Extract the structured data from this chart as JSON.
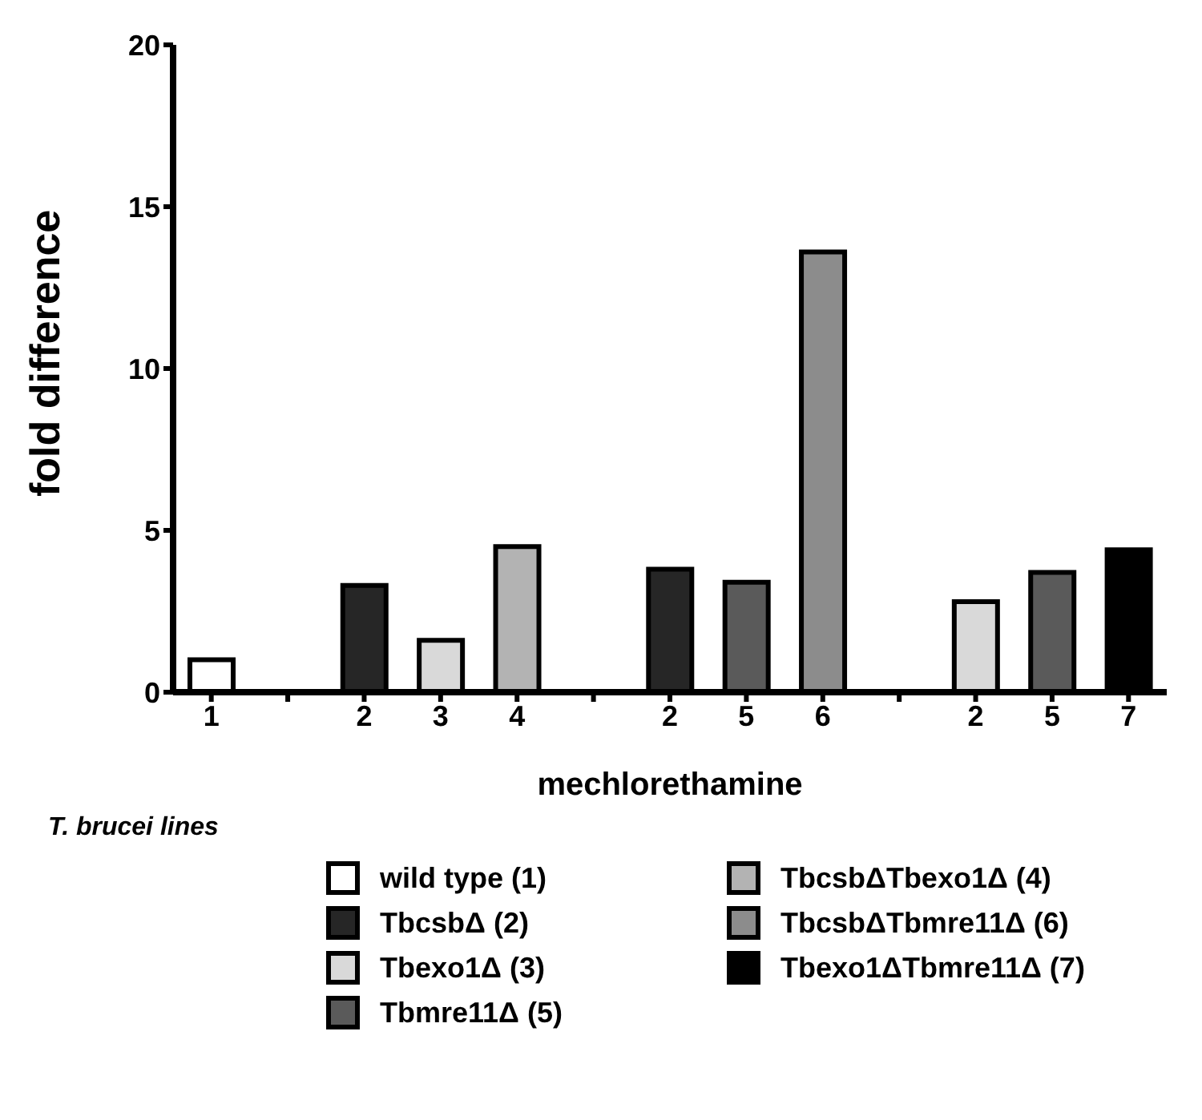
{
  "chart_data": {
    "type": "bar",
    "stacked": true,
    "ylabel": "fold difference",
    "xlabel": "mechlorethamine",
    "legend_title": "T. brucei lines",
    "legend": "bottom",
    "categories": [
      "1",
      null,
      "2",
      "3",
      "4",
      null,
      "2",
      "5",
      "6",
      null,
      "2",
      "5",
      "7"
    ],
    "ylim": [
      0,
      20
    ],
    "yticks": [
      0,
      5,
      10,
      15,
      20
    ],
    "series": [
      {
        "name": "wild type (1)",
        "color": "#ffffff",
        "values": [
          1.0,
          null,
          null,
          null,
          null,
          null,
          null,
          null,
          null,
          null,
          null,
          null,
          null
        ]
      },
      {
        "name": "TbcsbΔ (2)",
        "color": "#262626",
        "values": [
          null,
          null,
          3.3,
          null,
          null,
          null,
          3.8,
          null,
          null,
          null,
          null,
          null,
          null
        ]
      },
      {
        "name": "Tbexo1Δ (3)",
        "color": "#d9d9d9",
        "values": [
          null,
          null,
          null,
          1.6,
          null,
          null,
          null,
          null,
          null,
          null,
          2.8,
          null,
          null
        ]
      },
      {
        "name": "Tbmre11Δ (5)",
        "color": "#5a5a5a",
        "values": [
          null,
          null,
          null,
          null,
          null,
          null,
          null,
          3.4,
          null,
          null,
          null,
          3.7,
          null
        ]
      },
      {
        "name": "TbcsbΔTbexo1Δ (4)",
        "color": "#b3b3b3",
        "values": [
          null,
          null,
          null,
          null,
          4.5,
          null,
          null,
          null,
          null,
          null,
          null,
          null,
          null
        ]
      },
      {
        "name": "TbcsbΔTbmre11Δ (6)",
        "color": "#8c8c8c",
        "values": [
          null,
          null,
          null,
          null,
          null,
          null,
          null,
          null,
          13.6,
          null,
          null,
          null,
          null
        ]
      },
      {
        "name": "Tbexo1ΔTbmre11Δ (7)",
        "color": "#000000",
        "values": [
          null,
          null,
          null,
          null,
          null,
          null,
          null,
          null,
          null,
          null,
          null,
          null,
          4.4
        ]
      }
    ]
  }
}
